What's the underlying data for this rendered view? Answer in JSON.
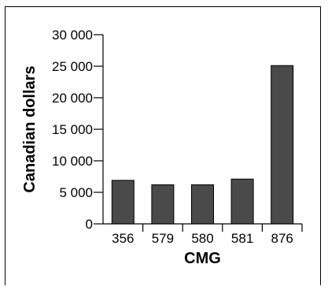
{
  "chart_data": {
    "type": "bar",
    "categories": [
      "356",
      "579",
      "580",
      "581",
      "876"
    ],
    "values": [
      6900,
      6200,
      6200,
      7100,
      25100
    ],
    "xlabel": "CMG",
    "ylabel": "Canadian dollars",
    "ylim": [
      0,
      30000
    ],
    "yticks": [
      0,
      5000,
      10000,
      15000,
      20000,
      25000,
      30000
    ],
    "ytick_labels": [
      "0",
      "5 000",
      "10 000",
      "15 000",
      "20 000",
      "25 000",
      "30 000"
    ],
    "grid": false,
    "bar_color": "#4a4a4a"
  }
}
